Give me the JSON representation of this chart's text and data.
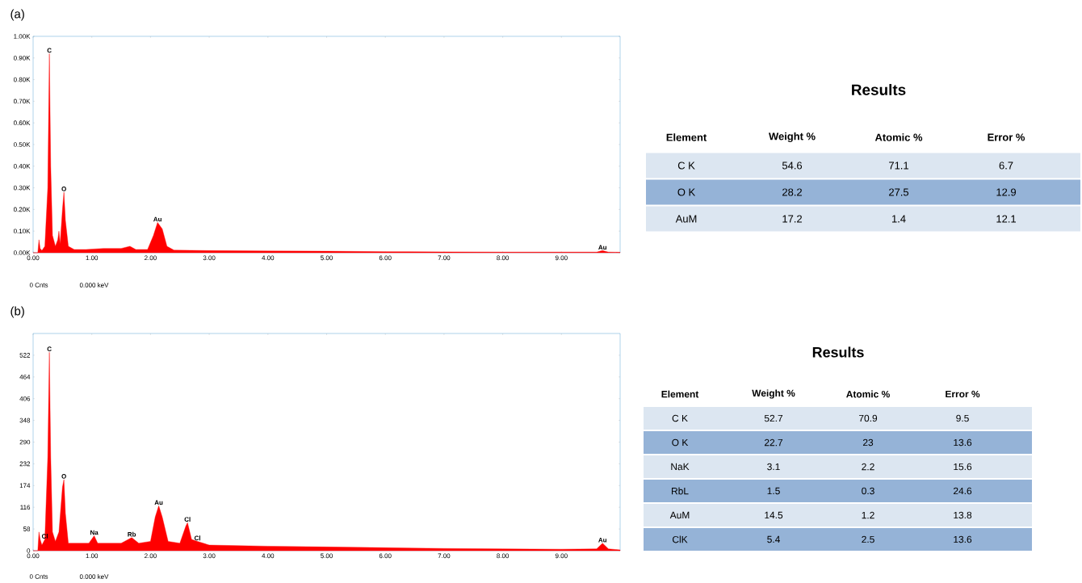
{
  "chart_data": [
    {
      "type": "area",
      "title": "(a)",
      "color": "#ff0000",
      "x": [
        0.0,
        0.08,
        0.1,
        0.12,
        0.15,
        0.2,
        0.25,
        0.277,
        0.3,
        0.33,
        0.38,
        0.42,
        0.44,
        0.46,
        0.5,
        0.525,
        0.55,
        0.6,
        0.7,
        0.9,
        1.2,
        1.5,
        1.65,
        1.75,
        1.95,
        2.05,
        2.12,
        2.2,
        2.28,
        2.4,
        3.0,
        4.0,
        5.0,
        6.0,
        7.0,
        8.0,
        9.0,
        9.6,
        9.7,
        9.8,
        10.0
      ],
      "values": [
        0,
        0,
        60,
        20,
        10,
        30,
        300,
        920,
        400,
        80,
        30,
        60,
        100,
        40,
        200,
        280,
        150,
        30,
        15,
        15,
        20,
        20,
        30,
        15,
        15,
        80,
        140,
        110,
        30,
        12,
        10,
        8,
        7,
        5,
        4,
        3,
        3,
        3,
        10,
        3,
        2
      ],
      "xlim": [
        0,
        10
      ],
      "ylim": [
        0,
        1000
      ],
      "xticks": [
        {
          "value": 0,
          "label": "0.00"
        },
        {
          "value": 1,
          "label": "1.00"
        },
        {
          "value": 2,
          "label": "2.00"
        },
        {
          "value": 3,
          "label": "3.00"
        },
        {
          "value": 4,
          "label": "4.00"
        },
        {
          "value": 5,
          "label": "5.00"
        },
        {
          "value": 6,
          "label": "6.00"
        },
        {
          "value": 7,
          "label": "7.00"
        },
        {
          "value": 8,
          "label": "8.00"
        },
        {
          "value": 9,
          "label": "9.00"
        }
      ],
      "yticks": [
        {
          "value": 0,
          "label": "0.00K"
        },
        {
          "value": 100,
          "label": "0.10K"
        },
        {
          "value": 200,
          "label": "0.20K"
        },
        {
          "value": 300,
          "label": "0.30K"
        },
        {
          "value": 400,
          "label": "0.40K"
        },
        {
          "value": 500,
          "label": "0.50K"
        },
        {
          "value": 600,
          "label": "0.60K"
        },
        {
          "value": 700,
          "label": "0.70K"
        },
        {
          "value": 800,
          "label": "0.80K"
        },
        {
          "value": 900,
          "label": "0.90K"
        },
        {
          "value": 1000,
          "label": "1.00K"
        }
      ],
      "annotations": [
        {
          "text": "C",
          "x": 0.277,
          "y": 920
        },
        {
          "text": "O",
          "x": 0.525,
          "y": 280
        },
        {
          "text": "Au",
          "x": 2.12,
          "y": 140
        },
        {
          "text": "Au",
          "x": 9.7,
          "y": 10
        },
        "0 Cnts",
        "0.000 keV"
      ]
    },
    {
      "type": "other",
      "title": "Results",
      "categories": [
        "Element",
        "Weight %",
        "Atomic %",
        "Error %"
      ],
      "y_categories": [
        "C K",
        "O K",
        "AuM"
      ],
      "cell_labels": [
        [
          "54.6",
          "71.1",
          "6.7"
        ],
        [
          "28.2",
          "27.5",
          "12.9"
        ],
        [
          "17.2",
          "1.4",
          "12.1"
        ]
      ],
      "colors": [
        "#dce6f1",
        "#95b3d7"
      ]
    },
    {
      "type": "area",
      "title": "(b)",
      "color": "#ff0000",
      "x": [
        0.0,
        0.08,
        0.1,
        0.12,
        0.15,
        0.2,
        0.25,
        0.277,
        0.3,
        0.33,
        0.38,
        0.44,
        0.5,
        0.525,
        0.55,
        0.6,
        0.8,
        0.95,
        1.04,
        1.1,
        1.3,
        1.5,
        1.68,
        1.8,
        2.0,
        2.08,
        2.14,
        2.2,
        2.3,
        2.5,
        2.6,
        2.63,
        2.7,
        2.8,
        3.0,
        4.0,
        5.0,
        6.0,
        7.0,
        8.0,
        9.0,
        9.6,
        9.7,
        9.8,
        10.0
      ],
      "values": [
        0,
        0,
        50,
        30,
        15,
        30,
        250,
        530,
        250,
        50,
        25,
        50,
        170,
        190,
        100,
        20,
        20,
        20,
        40,
        20,
        20,
        20,
        35,
        20,
        25,
        90,
        120,
        90,
        25,
        20,
        65,
        75,
        30,
        25,
        15,
        12,
        10,
        8,
        6,
        5,
        4,
        5,
        20,
        5,
        2
      ],
      "xlim": [
        0,
        10
      ],
      "ylim": [
        0,
        580
      ],
      "xticks": [
        {
          "value": 0,
          "label": "0.00"
        },
        {
          "value": 1,
          "label": "1.00"
        },
        {
          "value": 2,
          "label": "2.00"
        },
        {
          "value": 3,
          "label": "3.00"
        },
        {
          "value": 4,
          "label": "4.00"
        },
        {
          "value": 5,
          "label": "5.00"
        },
        {
          "value": 6,
          "label": "6.00"
        },
        {
          "value": 7,
          "label": "7.00"
        },
        {
          "value": 8,
          "label": "8.00"
        },
        {
          "value": 9,
          "label": "9.00"
        }
      ],
      "yticks": [
        0,
        58,
        116,
        174,
        232,
        290,
        348,
        406,
        464,
        522
      ],
      "annotations": [
        {
          "text": "C",
          "x": 0.277,
          "y": 530
        },
        {
          "text": "O",
          "x": 0.525,
          "y": 190
        },
        {
          "text": "Cl",
          "x": 0.2,
          "y": 30
        },
        {
          "text": "Na",
          "x": 1.04,
          "y": 40
        },
        {
          "text": "Rb",
          "x": 1.68,
          "y": 35
        },
        {
          "text": "Au",
          "x": 2.14,
          "y": 120
        },
        {
          "text": "Cl",
          "x": 2.63,
          "y": 75
        },
        {
          "text": "Cl",
          "x": 2.8,
          "y": 25
        },
        {
          "text": "Au",
          "x": 9.7,
          "y": 20
        },
        "0 Cnts",
        "0.000 keV"
      ]
    },
    {
      "type": "other",
      "title": "Results",
      "categories": [
        "Element",
        "Weight %",
        "Atomic %",
        "Error %"
      ],
      "y_categories": [
        "C K",
        "O K",
        "NaK",
        "RbL",
        "AuM",
        "ClK"
      ],
      "cell_labels": [
        [
          "52.7",
          "70.9",
          "9.5"
        ],
        [
          "22.7",
          "23",
          "13.6"
        ],
        [
          "3.1",
          "2.2",
          "15.6"
        ],
        [
          "1.5",
          "0.3",
          "24.6"
        ],
        [
          "14.5",
          "1.2",
          "13.8"
        ],
        [
          "5.4",
          "2.5",
          "13.6"
        ]
      ],
      "colors": [
        "#dce6f1",
        "#95b3d7"
      ]
    }
  ]
}
